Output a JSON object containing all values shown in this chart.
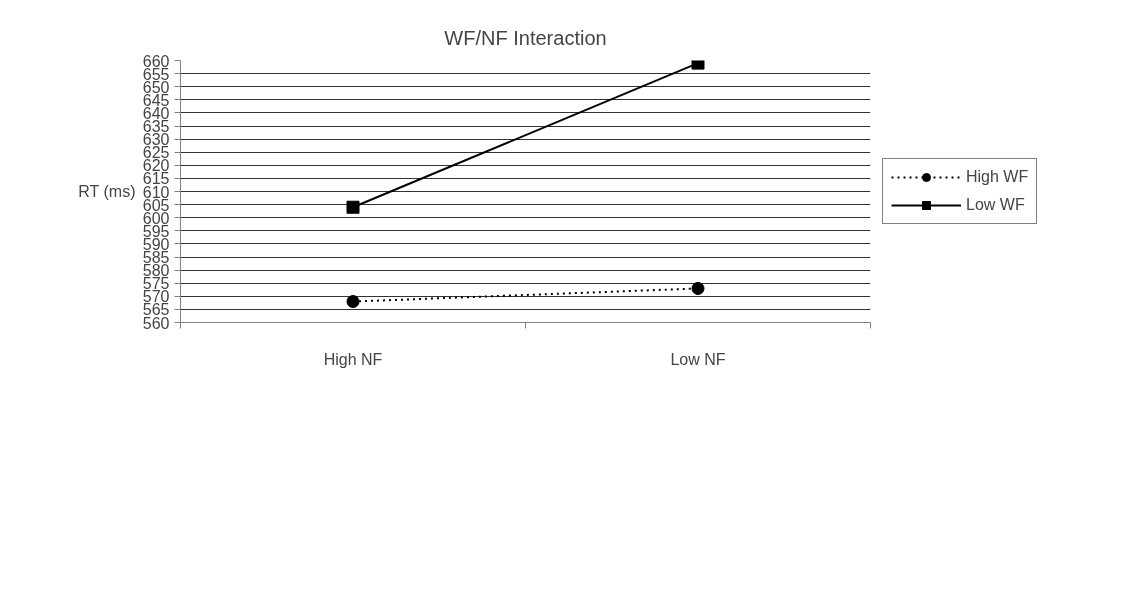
{
  "chart_data": {
    "type": "line",
    "title": "WF/NF Interaction",
    "ylabel": "RT (ms)",
    "categories": [
      "High NF",
      "Low NF"
    ],
    "series": [
      {
        "name": "High WF",
        "color": "#000000",
        "values": [
          568,
          573
        ],
        "marker": "circle",
        "line_style": "dotted"
      },
      {
        "name": "Low WF",
        "color": "#000000",
        "values": [
          604,
          659
        ],
        "marker": "square",
        "line_style": "solid"
      }
    ],
    "ylim": [
      560,
      660
    ],
    "yticks": [
      560,
      565,
      570,
      575,
      580,
      585,
      590,
      595,
      600,
      605,
      610,
      615,
      620,
      625,
      630,
      635,
      640,
      645,
      650,
      655,
      660
    ],
    "grid": "y",
    "legend": "right"
  }
}
